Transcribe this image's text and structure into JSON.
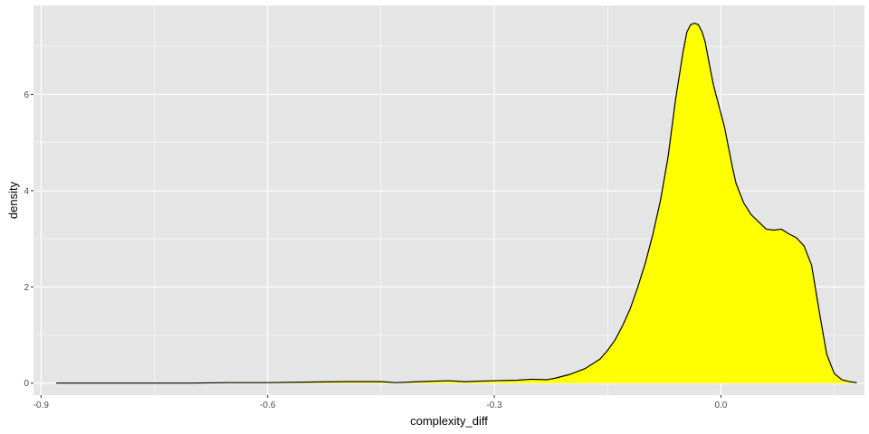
{
  "chart_data": {
    "type": "area",
    "title": "",
    "xlabel": "complexity_diff",
    "ylabel": "density",
    "xlim": [
      -0.91,
      0.19
    ],
    "ylim": [
      -0.25,
      7.85
    ],
    "x_ticks": [
      -0.9,
      -0.6,
      -0.3,
      0.0
    ],
    "x_tick_labels": [
      "-0.9",
      "-0.6",
      "-0.3",
      "0.0"
    ],
    "y_ticks": [
      0,
      2,
      4,
      6
    ],
    "y_tick_labels": [
      "0",
      "2",
      "4",
      "6"
    ],
    "grid": true,
    "legend": "none",
    "fill_color": "#ffff00",
    "line_color": "#000000",
    "panel_color": "#e5e5e5",
    "grid_color": "#ffffff",
    "series": [
      {
        "x": [
          -0.88,
          -0.8,
          -0.7,
          -0.65,
          -0.6,
          -0.55,
          -0.5,
          -0.45,
          -0.43,
          -0.4,
          -0.36,
          -0.34,
          -0.3,
          -0.27,
          -0.25,
          -0.23,
          -0.22,
          -0.2,
          -0.18,
          -0.16,
          -0.15,
          -0.14,
          -0.13,
          -0.12,
          -0.11,
          -0.1,
          -0.09,
          -0.08,
          -0.07,
          -0.06,
          -0.05,
          -0.045,
          -0.04,
          -0.035,
          -0.03,
          -0.025,
          -0.021,
          -0.015,
          -0.01,
          -0.005,
          0.0,
          0.005,
          0.01,
          0.015,
          0.02,
          0.03,
          0.04,
          0.05,
          0.06,
          0.07,
          0.08,
          0.09,
          0.1,
          0.11,
          0.12,
          0.13,
          0.14,
          0.15,
          0.16,
          0.17,
          0.18
        ],
        "y": [
          0.0,
          0.0,
          0.0,
          0.01,
          0.01,
          0.02,
          0.03,
          0.03,
          0.01,
          0.03,
          0.05,
          0.03,
          0.05,
          0.06,
          0.08,
          0.07,
          0.1,
          0.18,
          0.3,
          0.5,
          0.68,
          0.9,
          1.2,
          1.55,
          2.0,
          2.5,
          3.1,
          3.8,
          4.7,
          5.9,
          6.9,
          7.3,
          7.45,
          7.48,
          7.45,
          7.3,
          7.1,
          6.6,
          6.2,
          5.9,
          5.6,
          5.3,
          4.9,
          4.5,
          4.15,
          3.75,
          3.5,
          3.35,
          3.2,
          3.18,
          3.2,
          3.1,
          3.02,
          2.85,
          2.45,
          1.5,
          0.6,
          0.2,
          0.07,
          0.03,
          0.01
        ]
      }
    ]
  }
}
